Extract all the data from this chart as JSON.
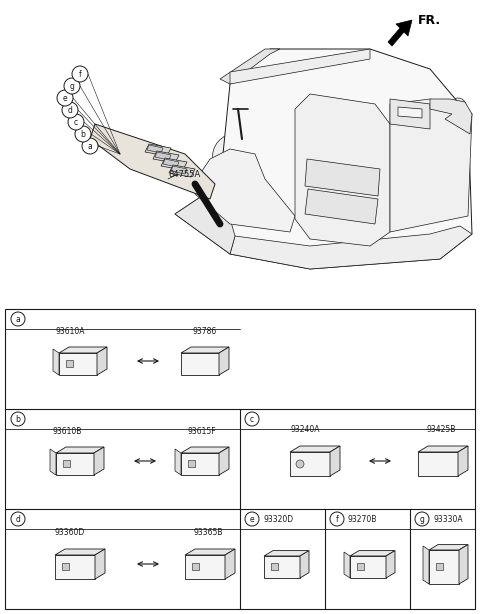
{
  "bg_color": "#ffffff",
  "line_color": "#1a1a1a",
  "text_color": "#1a1a1a",
  "fig_width": 4.8,
  "fig_height": 6.14,
  "fr_label": "FR.",
  "part_number_main": "84755A",
  "section_labels": [
    "a",
    "b",
    "c",
    "d",
    "e",
    "f",
    "g"
  ],
  "part_ids_a": [
    "93610A",
    "93786"
  ],
  "part_ids_b": [
    "93610B",
    "93615F"
  ],
  "part_ids_c": [
    "93240A",
    "93425B"
  ],
  "part_ids_d": [
    "93360D",
    "93365B"
  ],
  "part_id_e": "93320D",
  "part_id_f": "93270B",
  "part_id_g": "93330A"
}
